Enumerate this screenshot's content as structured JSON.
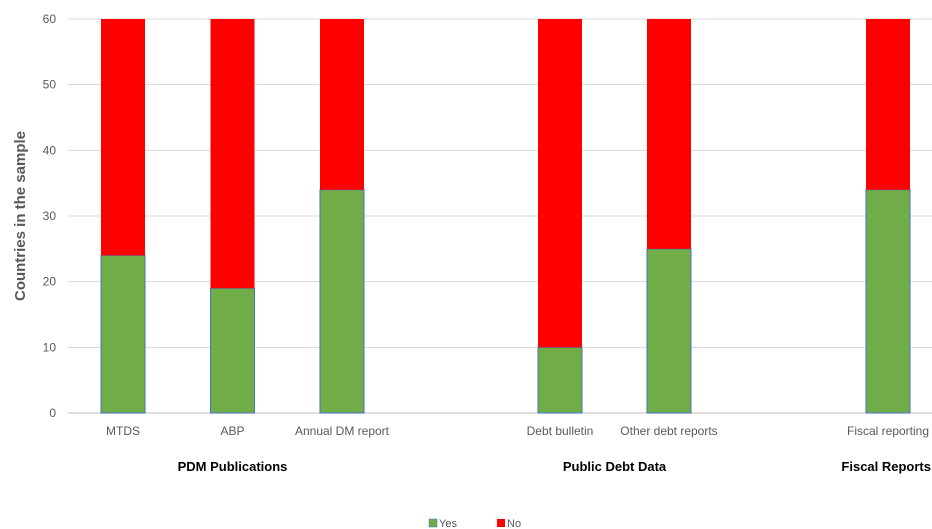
{
  "chart_data": {
    "type": "bar",
    "stacked": true,
    "categories": [
      "MTDS",
      "ABP",
      "Annual DM report",
      "Debt bulletin",
      "Other debt reports",
      "Fiscal reporting"
    ],
    "groups": [
      {
        "label": "PDM Publications",
        "categories": [
          "MTDS",
          "ABP",
          "Annual DM report"
        ]
      },
      {
        "label": "Public Debt Data",
        "categories": [
          "Debt bulletin",
          "Other debt reports"
        ]
      },
      {
        "label": "Fiscal Reports",
        "categories": [
          "Fiscal reporting"
        ]
      }
    ],
    "series": [
      {
        "name": "Yes",
        "color": "#70ad47",
        "values": [
          24,
          19,
          34,
          10,
          25,
          34
        ]
      },
      {
        "name": "No",
        "color": "#ff0000",
        "values": [
          36,
          41,
          26,
          50,
          35,
          26
        ]
      }
    ],
    "ylabel": "Countries in the sample",
    "xlabel": "",
    "ylim": [
      0,
      60
    ],
    "yticks": [
      0,
      10,
      20,
      30,
      40,
      50,
      60
    ],
    "grid": true,
    "legend": "bottom"
  }
}
